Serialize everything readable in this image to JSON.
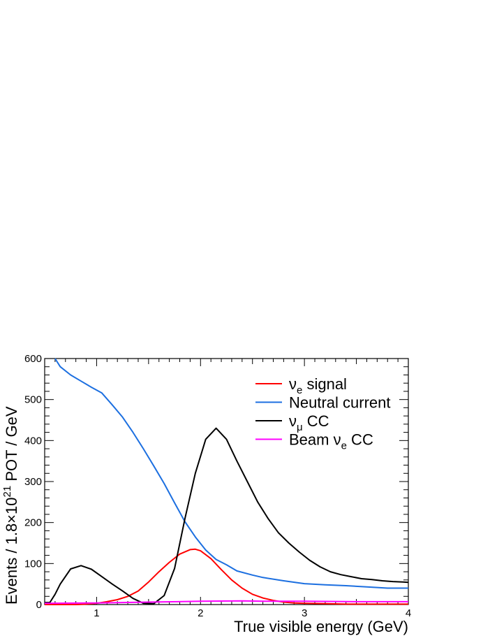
{
  "chart_data": {
    "type": "line",
    "xlabel": "True visible energy (GeV)",
    "ylabel": {
      "prefix": "Events / 1.8",
      "times": "×",
      "base": "10",
      "exp": "21",
      "suffix": " POT / GeV"
    },
    "xlim": [
      0.5,
      4.0
    ],
    "ylim": [
      0,
      600
    ],
    "xticks": [
      1,
      2,
      3,
      4
    ],
    "yticks": [
      0,
      100,
      200,
      300,
      400,
      500,
      600
    ],
    "grid": false,
    "legend_position": "top-right",
    "series": [
      {
        "key": "nue",
        "name": "ν_e signal",
        "label_base": "ν",
        "label_sub": "e",
        "label_rest": " signal",
        "color": "#ff0000",
        "x": [
          0.5,
          0.6,
          0.7,
          0.8,
          0.9,
          1.0,
          1.1,
          1.2,
          1.3,
          1.4,
          1.5,
          1.6,
          1.7,
          1.8,
          1.9,
          1.95,
          2.0,
          2.1,
          2.2,
          2.3,
          2.4,
          2.5,
          2.6,
          2.7,
          2.8,
          2.9,
          3.0,
          3.2,
          3.4,
          3.6,
          3.8,
          4.0
        ],
        "y": [
          0,
          0,
          0,
          0,
          1,
          3,
          7,
          12,
          20,
          33,
          55,
          80,
          103,
          123,
          134,
          135,
          131,
          112,
          85,
          60,
          40,
          25,
          16,
          10,
          6,
          4,
          3,
          2,
          1,
          1,
          1,
          1
        ]
      },
      {
        "key": "nc",
        "name": "Neutral current",
        "label_base": "Neutral current",
        "label_sub": "",
        "label_rest": "",
        "color": "#1c6fe0",
        "x": [
          0.6,
          0.65,
          0.75,
          0.85,
          0.95,
          1.05,
          1.15,
          1.25,
          1.35,
          1.45,
          1.55,
          1.65,
          1.75,
          1.85,
          1.95,
          2.05,
          2.15,
          2.25,
          2.35,
          2.5,
          2.6,
          2.8,
          3.0,
          3.2,
          3.4,
          3.6,
          3.8,
          4.0
        ],
        "y": [
          600,
          580,
          560,
          545,
          530,
          516,
          487,
          457,
          420,
          380,
          338,
          295,
          248,
          202,
          165,
          133,
          110,
          97,
          82,
          72,
          66,
          58,
          51,
          48,
          46,
          43,
          40,
          40
        ]
      },
      {
        "key": "numu",
        "name": "ν_μ CC",
        "label_base": "ν",
        "label_sub": "μ",
        "label_rest": " CC",
        "color": "#000000",
        "x": [
          0.5,
          0.55,
          0.6,
          0.65,
          0.75,
          0.85,
          0.95,
          1.05,
          1.15,
          1.25,
          1.35,
          1.45,
          1.55,
          1.65,
          1.75,
          1.85,
          1.95,
          2.05,
          2.15,
          2.25,
          2.35,
          2.45,
          2.55,
          2.65,
          2.75,
          2.85,
          2.95,
          3.05,
          3.15,
          3.25,
          3.35,
          3.45,
          3.55,
          3.65,
          3.75,
          3.85,
          3.95,
          4.0
        ],
        "y": [
          5,
          5,
          25,
          50,
          87,
          95,
          86,
          68,
          50,
          33,
          15,
          3,
          2,
          22,
          88,
          210,
          320,
          403,
          430,
          403,
          350,
          300,
          250,
          210,
          175,
          150,
          128,
          108,
          92,
          80,
          73,
          68,
          63,
          61,
          58,
          56,
          55,
          54
        ]
      },
      {
        "key": "beamnue",
        "name": "Beam ν_e CC",
        "label_base": "Beam ν",
        "label_sub": "e",
        "label_rest": " CC",
        "color": "#ff00ff",
        "x": [
          0.5,
          1.0,
          1.5,
          2.0,
          2.4,
          2.6,
          3.0,
          3.5,
          4.0
        ],
        "y": [
          3,
          4,
          6,
          8,
          9,
          8,
          8,
          7,
          7
        ]
      }
    ]
  }
}
